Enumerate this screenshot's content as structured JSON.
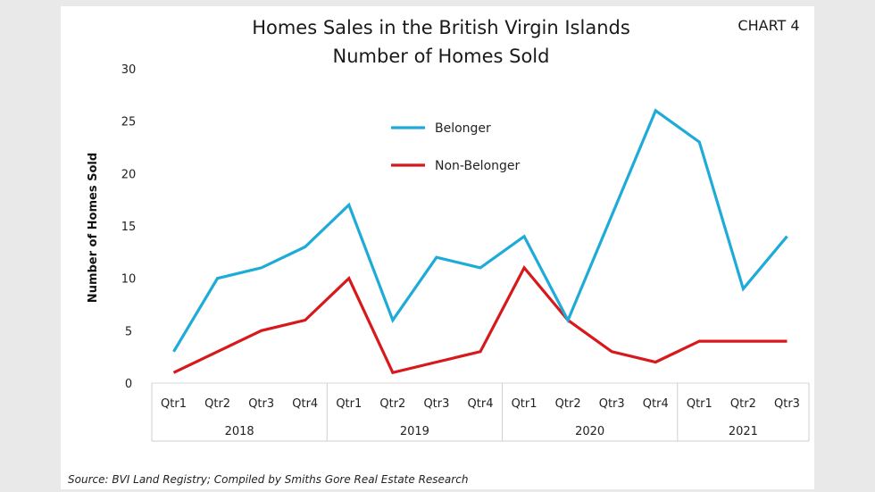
{
  "chart_data": {
    "type": "line",
    "title": "Homes Sales in the British Virgin Islands",
    "subtitle": "Number of Homes Sold",
    "tag": "CHART 4",
    "ylabel": "Number of Homes Sold",
    "ylim": [
      0,
      30
    ],
    "yticks": [
      0,
      5,
      10,
      15,
      20,
      25,
      30
    ],
    "grid": false,
    "legend_position": "top-center",
    "categories": [
      "Qtr1",
      "Qtr2",
      "Qtr3",
      "Qtr4",
      "Qtr1",
      "Qtr2",
      "Qtr3",
      "Qtr4",
      "Qtr1",
      "Qtr2",
      "Qtr3",
      "Qtr4",
      "Qtr1",
      "Qtr2",
      "Qtr3"
    ],
    "groups": [
      {
        "label": "2018",
        "count": 4
      },
      {
        "label": "2019",
        "count": 4
      },
      {
        "label": "2020",
        "count": 4
      },
      {
        "label": "2021",
        "count": 3
      }
    ],
    "series": [
      {
        "name": "Belonger",
        "color": "#1eabd8",
        "values": [
          3,
          10,
          11,
          13,
          17,
          6,
          12,
          11,
          14,
          6,
          16,
          26,
          23,
          9,
          14
        ]
      },
      {
        "name": "Non-Belonger",
        "color": "#d7191c",
        "values": [
          1,
          3,
          5,
          6,
          10,
          1,
          2,
          3,
          11,
          6,
          3,
          2,
          4,
          4,
          4
        ]
      }
    ],
    "source": "Source: BVI Land Registry; Compiled by Smiths Gore Real Estate Research"
  }
}
